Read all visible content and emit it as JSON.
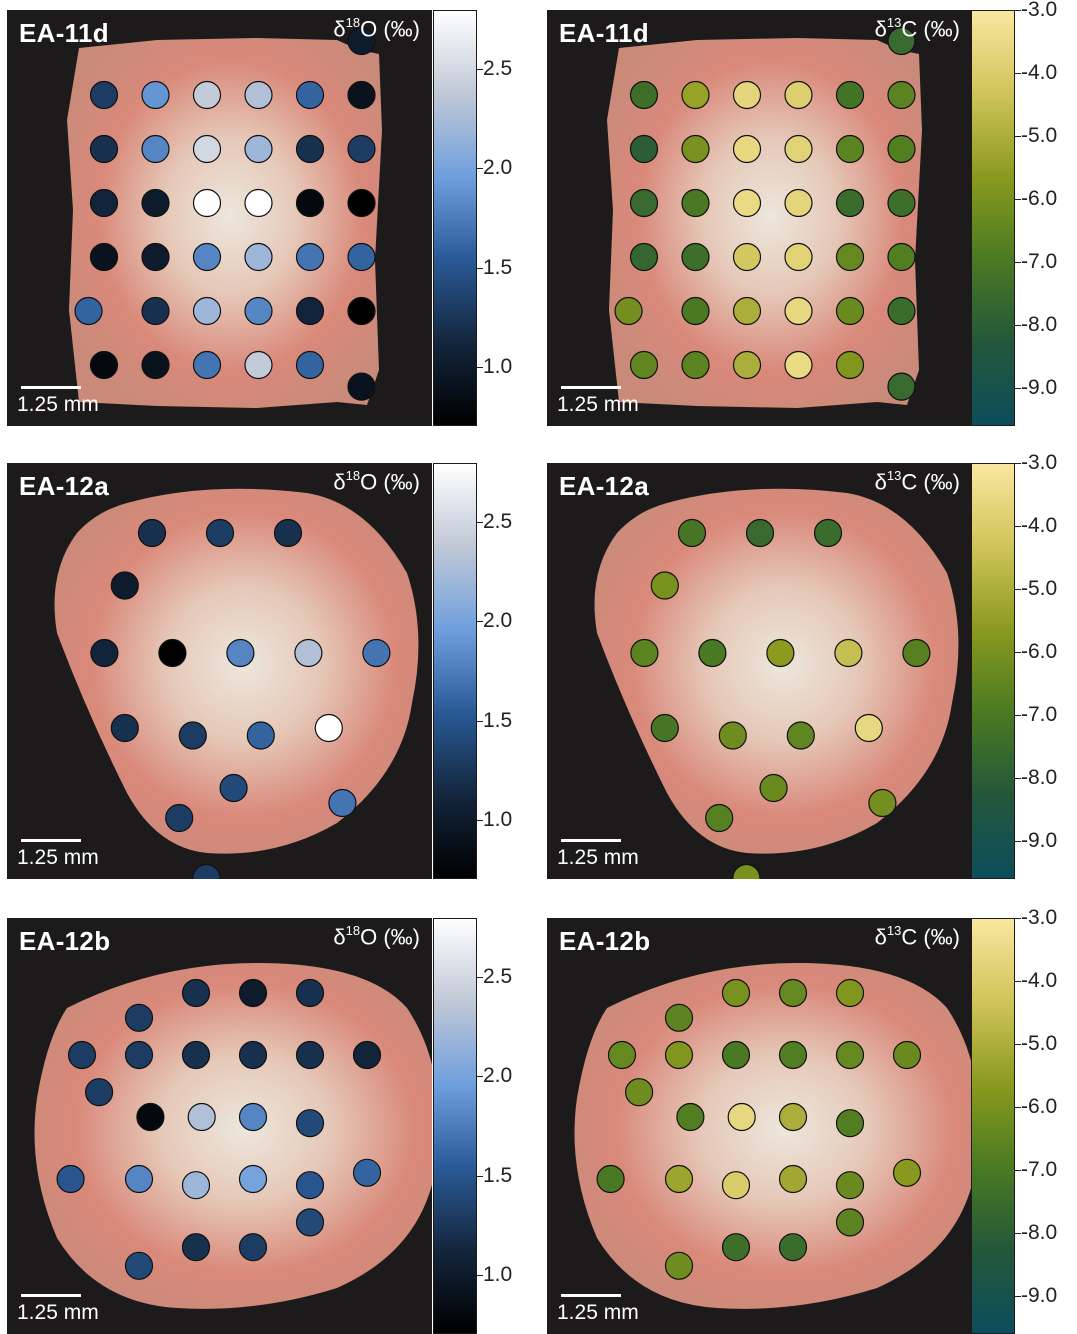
{
  "figure": {
    "scale_bar_label": "1.25 mm",
    "o_label": {
      "delta": "δ",
      "mass": "18",
      "element": "O (‰)"
    },
    "c_label": {
      "delta": "δ",
      "mass": "13",
      "element": "C (‰)"
    },
    "o_colorbar": {
      "min": 0.7,
      "max": 2.8,
      "ticks": [
        "2.5",
        "2.0",
        "1.5",
        "1.0"
      ],
      "tick_values": [
        2.5,
        2.0,
        1.5,
        1.0
      ],
      "stops": [
        "#000000",
        "#13263d",
        "#2a5a96",
        "#6f9fdd",
        "#c0c8d6",
        "#ffffff"
      ]
    },
    "c_colorbar": {
      "min": -9.6,
      "max": -3.0,
      "ticks": [
        "-3.0",
        "-4.0",
        "-5.0",
        "-6.0",
        "-7.0",
        "-8.0",
        "-9.0"
      ],
      "tick_values": [
        -3.0,
        -4.0,
        -5.0,
        -6.0,
        -7.0,
        -8.0,
        -9.0
      ],
      "stops": [
        "#0c4d5c",
        "#24573a",
        "#4a7a22",
        "#8a9a1e",
        "#d0c45a",
        "#fae7a0"
      ]
    }
  },
  "rows": [
    {
      "sample": "EA-11d",
      "shape": "rect",
      "o_points": [
        [
          1.3,
          0,
          0
        ],
        [
          1.9,
          0,
          1
        ],
        [
          2.4,
          0,
          2
        ],
        [
          2.3,
          0,
          3
        ],
        [
          1.6,
          0,
          4
        ],
        [
          0.9,
          0,
          5
        ],
        [
          1.0,
          -1,
          5
        ],
        [
          1.2,
          1,
          0
        ],
        [
          1.8,
          1,
          1
        ],
        [
          2.5,
          1,
          2
        ],
        [
          2.2,
          1,
          3
        ],
        [
          1.2,
          1,
          4
        ],
        [
          1.3,
          1,
          5
        ],
        [
          1.1,
          2,
          0
        ],
        [
          1.0,
          2,
          1
        ],
        [
          2.8,
          2,
          2
        ],
        [
          2.8,
          2,
          3
        ],
        [
          0.8,
          2,
          4
        ],
        [
          0.7,
          2,
          5
        ],
        [
          0.9,
          3,
          0
        ],
        [
          1.0,
          3,
          1
        ],
        [
          1.8,
          3,
          2
        ],
        [
          2.2,
          3,
          3
        ],
        [
          1.7,
          3,
          4
        ],
        [
          1.6,
          3,
          5
        ],
        [
          1.6,
          4,
          -0.3
        ],
        [
          1.2,
          4,
          1
        ],
        [
          2.2,
          4,
          2
        ],
        [
          1.8,
          4,
          3
        ],
        [
          1.1,
          4,
          4
        ],
        [
          0.7,
          4,
          5
        ],
        [
          0.8,
          5,
          0
        ],
        [
          0.9,
          5,
          1
        ],
        [
          1.7,
          5,
          2
        ],
        [
          2.4,
          5,
          3
        ],
        [
          1.6,
          5,
          4
        ],
        [
          0.9,
          5.4,
          5
        ]
      ],
      "c_points": [
        [
          -7.4,
          0,
          0
        ],
        [
          -5.4,
          0,
          1
        ],
        [
          -3.7,
          0,
          2
        ],
        [
          -3.9,
          0,
          3
        ],
        [
          -7.2,
          0,
          4
        ],
        [
          -6.6,
          0,
          5
        ],
        [
          -7.6,
          -1,
          5
        ],
        [
          -8.0,
          1,
          0
        ],
        [
          -6.0,
          1,
          1
        ],
        [
          -3.6,
          1,
          2
        ],
        [
          -3.8,
          1,
          3
        ],
        [
          -6.6,
          1,
          4
        ],
        [
          -6.8,
          1,
          5
        ],
        [
          -7.6,
          2,
          0
        ],
        [
          -7.0,
          2,
          1
        ],
        [
          -3.5,
          2,
          2
        ],
        [
          -3.7,
          2,
          3
        ],
        [
          -7.5,
          2,
          4
        ],
        [
          -7.4,
          2,
          5
        ],
        [
          -7.7,
          3,
          0
        ],
        [
          -7.4,
          3,
          1
        ],
        [
          -4.2,
          3,
          2
        ],
        [
          -3.8,
          3,
          3
        ],
        [
          -6.4,
          3,
          4
        ],
        [
          -6.8,
          3,
          5
        ],
        [
          -6.1,
          4,
          -0.3
        ],
        [
          -7.0,
          4,
          1
        ],
        [
          -5.0,
          4,
          2
        ],
        [
          -3.6,
          4,
          3
        ],
        [
          -6.3,
          4,
          4
        ],
        [
          -7.5,
          4,
          5
        ],
        [
          -6.5,
          5,
          0
        ],
        [
          -6.6,
          5,
          1
        ],
        [
          -5.0,
          5,
          2
        ],
        [
          -3.5,
          5,
          3
        ],
        [
          -5.8,
          5,
          4
        ],
        [
          -7.6,
          5.4,
          5
        ]
      ]
    },
    {
      "sample": "EA-12a",
      "shape": "blob",
      "o_points": [
        [
          1.2,
          0,
          0
        ],
        [
          1.3,
          0,
          1
        ],
        [
          1.2,
          0,
          2
        ],
        [
          1.0,
          0.7,
          -0.4
        ],
        [
          1.1,
          1.6,
          -0.7
        ],
        [
          0.6,
          1.6,
          0.3
        ],
        [
          1.8,
          1.6,
          1.3
        ],
        [
          2.3,
          1.6,
          2.3
        ],
        [
          1.7,
          1.6,
          3.3
        ],
        [
          1.2,
          2.6,
          -0.4
        ],
        [
          1.3,
          2.7,
          0.6
        ],
        [
          1.6,
          2.7,
          1.6
        ],
        [
          2.8,
          2.6,
          2.6
        ],
        [
          1.4,
          3.4,
          1.2
        ],
        [
          1.7,
          3.6,
          2.8
        ],
        [
          1.3,
          3.8,
          0.4
        ],
        [
          1.3,
          4.6,
          0.8
        ]
      ],
      "c_points": [
        [
          -7.1,
          0,
          0
        ],
        [
          -7.6,
          0,
          1
        ],
        [
          -7.5,
          0,
          2
        ],
        [
          -6.0,
          0.7,
          -0.4
        ],
        [
          -6.6,
          1.6,
          -0.7
        ],
        [
          -7.0,
          1.6,
          0.3
        ],
        [
          -5.6,
          1.6,
          1.3
        ],
        [
          -4.5,
          1.6,
          2.3
        ],
        [
          -6.7,
          1.6,
          3.3
        ],
        [
          -7.1,
          2.6,
          -0.4
        ],
        [
          -6.2,
          2.7,
          0.6
        ],
        [
          -6.5,
          2.7,
          1.6
        ],
        [
          -3.6,
          2.6,
          2.6
        ],
        [
          -6.3,
          3.4,
          1.2
        ],
        [
          -6.1,
          3.6,
          2.8
        ],
        [
          -6.7,
          3.8,
          0.4
        ],
        [
          -6.0,
          4.6,
          0.8
        ]
      ]
    },
    {
      "sample": "EA-12b",
      "shape": "oval",
      "o_points": [
        [
          1.2,
          0,
          1
        ],
        [
          1.0,
          0,
          2
        ],
        [
          1.2,
          0,
          3
        ],
        [
          1.3,
          0.4,
          0
        ],
        [
          1.3,
          1,
          -1
        ],
        [
          1.3,
          1,
          0
        ],
        [
          1.2,
          1,
          1
        ],
        [
          1.2,
          1,
          2
        ],
        [
          1.2,
          1,
          3
        ],
        [
          1.1,
          1,
          4
        ],
        [
          1.3,
          1.6,
          -0.7
        ],
        [
          0.8,
          2,
          0.2
        ],
        [
          2.3,
          2,
          1.1
        ],
        [
          1.8,
          2,
          2
        ],
        [
          1.4,
          2.1,
          3
        ],
        [
          1.5,
          3,
          -1.2
        ],
        [
          1.8,
          3,
          0
        ],
        [
          2.2,
          3.1,
          1
        ],
        [
          2.0,
          3,
          2
        ],
        [
          1.5,
          3.1,
          3
        ],
        [
          1.6,
          2.9,
          4
        ],
        [
          1.4,
          3.7,
          3
        ],
        [
          1.2,
          4.1,
          1
        ],
        [
          1.3,
          4.1,
          2
        ],
        [
          1.4,
          4.4,
          0
        ]
      ],
      "c_points": [
        [
          -6.0,
          0,
          1
        ],
        [
          -6.4,
          0,
          2
        ],
        [
          -5.8,
          0,
          3
        ],
        [
          -6.6,
          0.4,
          0
        ],
        [
          -6.4,
          1,
          -1
        ],
        [
          -5.8,
          1,
          0
        ],
        [
          -7.0,
          1,
          1
        ],
        [
          -6.8,
          1,
          2
        ],
        [
          -6.4,
          1,
          3
        ],
        [
          -6.3,
          1,
          4
        ],
        [
          -6.2,
          1.6,
          -0.7
        ],
        [
          -6.8,
          2,
          0.2
        ],
        [
          -3.6,
          2,
          1.1
        ],
        [
          -5.0,
          2,
          2
        ],
        [
          -6.8,
          2.1,
          3
        ],
        [
          -7.0,
          3,
          -1.2
        ],
        [
          -5.3,
          3,
          0
        ],
        [
          -4.0,
          3.1,
          1
        ],
        [
          -5.2,
          3,
          2
        ],
        [
          -6.3,
          3.1,
          3
        ],
        [
          -5.7,
          2.9,
          4
        ],
        [
          -6.6,
          3.7,
          3
        ],
        [
          -7.4,
          4.1,
          1
        ],
        [
          -7.5,
          4.1,
          2
        ],
        [
          -6.2,
          4.4,
          0
        ]
      ]
    }
  ]
}
